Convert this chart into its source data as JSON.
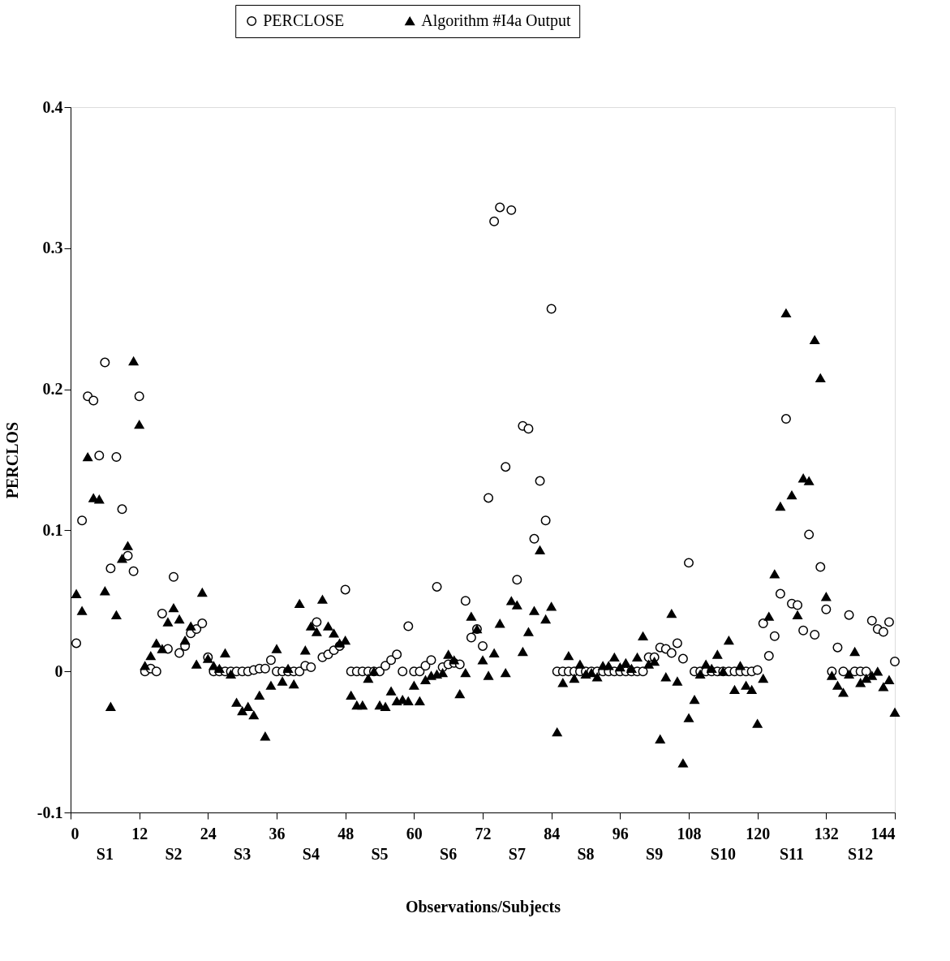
{
  "chart_data": {
    "type": "scatter",
    "xlabel": "Observations/Subjects",
    "ylabel": "PERCLOS",
    "legend": "top",
    "x": [
      1,
      2,
      3,
      4,
      5,
      6,
      7,
      8,
      9,
      10,
      11,
      12,
      13,
      14,
      15,
      16,
      17,
      18,
      19,
      20,
      21,
      22,
      23,
      24,
      25,
      26,
      27,
      28,
      29,
      30,
      31,
      32,
      33,
      34,
      35,
      36,
      37,
      38,
      39,
      40,
      41,
      42,
      43,
      44,
      45,
      46,
      47,
      48,
      49,
      50,
      51,
      52,
      53,
      54,
      55,
      56,
      57,
      58,
      59,
      60,
      61,
      62,
      63,
      64,
      65,
      66,
      67,
      68,
      69,
      70,
      71,
      72,
      73,
      74,
      75,
      76,
      77,
      78,
      79,
      80,
      81,
      82,
      83,
      84,
      85,
      86,
      87,
      88,
      89,
      90,
      91,
      92,
      93,
      94,
      95,
      96,
      97,
      98,
      99,
      100,
      101,
      102,
      103,
      104,
      105,
      106,
      107,
      108,
      109,
      110,
      111,
      112,
      113,
      114,
      115,
      116,
      117,
      118,
      119,
      120,
      121,
      122,
      123,
      124,
      125,
      126,
      127,
      128,
      129,
      130,
      131,
      132,
      133,
      134,
      135,
      136,
      137,
      138,
      139,
      140,
      141,
      142,
      143,
      144
    ],
    "series": [
      {
        "name": "PERCLOSE",
        "color": "#000000",
        "marker": "circle",
        "values": [
          0.02,
          0.107,
          0.195,
          0.192,
          0.153,
          0.219,
          0.073,
          0.152,
          0.115,
          0.082,
          0.071,
          0.195,
          0.0,
          0.002,
          0.0,
          0.041,
          0.016,
          0.067,
          0.013,
          0.018,
          0.027,
          0.03,
          0.034,
          0.01,
          0.0,
          0.0,
          0.0,
          0.0,
          0.0,
          0.0,
          0.0,
          0.001,
          0.002,
          0.002,
          0.008,
          0.0,
          0.0,
          0.0,
          0.0,
          0.0,
          0.004,
          0.003,
          0.035,
          0.01,
          0.012,
          0.015,
          0.018,
          0.058,
          0.0,
          0.0,
          0.0,
          0.0,
          0.0,
          0.0,
          0.004,
          0.008,
          0.012,
          0.0,
          0.032,
          0.0,
          0.0,
          0.004,
          0.008,
          0.06,
          0.003,
          0.005,
          0.006,
          0.005,
          0.05,
          0.024,
          0.03,
          0.018,
          0.123,
          0.319,
          0.329,
          0.145,
          0.327,
          0.065,
          0.174,
          0.172,
          0.094,
          0.135,
          0.107,
          0.257,
          0.0,
          0.0,
          0.0,
          0.0,
          0.0,
          0.0,
          0.0,
          0.0,
          0.0,
          0.0,
          0.0,
          0.0,
          0.0,
          0.0,
          0.0,
          0.0,
          0.01,
          0.01,
          0.017,
          0.016,
          0.013,
          0.02,
          0.009,
          0.077,
          0.0,
          0.0,
          0.0,
          0.0,
          0.0,
          0.0,
          0.0,
          0.0,
          0.0,
          0.0,
          0.0,
          0.001,
          0.034,
          0.011,
          0.025,
          0.055,
          0.179,
          0.048,
          0.047,
          0.029,
          0.097,
          0.026,
          0.074,
          0.044,
          0.0,
          0.017,
          0.0,
          0.04,
          0.0,
          0.0,
          0.0,
          0.036,
          0.03,
          0.028,
          0.035,
          0.007
        ]
      },
      {
        "name": "Algorithm #I4a Output",
        "color": "#000000",
        "marker": "triangle",
        "values": [
          0.055,
          0.043,
          0.152,
          0.123,
          0.122,
          0.057,
          -0.025,
          0.04,
          0.08,
          0.089,
          0.22,
          0.175,
          0.004,
          0.011,
          0.02,
          0.016,
          0.035,
          0.045,
          0.037,
          0.022,
          0.032,
          0.005,
          0.056,
          0.009,
          0.004,
          0.002,
          0.013,
          -0.002,
          -0.022,
          -0.028,
          -0.025,
          -0.031,
          -0.017,
          -0.046,
          -0.01,
          0.016,
          -0.007,
          0.002,
          -0.009,
          0.048,
          0.015,
          0.032,
          0.028,
          0.051,
          0.032,
          0.027,
          0.02,
          0.022,
          -0.017,
          -0.024,
          -0.024,
          -0.005,
          0.0,
          -0.024,
          -0.025,
          -0.014,
          -0.021,
          -0.02,
          -0.021,
          -0.01,
          -0.021,
          -0.006,
          -0.003,
          -0.002,
          -0.001,
          0.012,
          0.008,
          -0.016,
          -0.001,
          0.039,
          0.03,
          0.008,
          -0.003,
          0.013,
          0.034,
          -0.001,
          0.05,
          0.047,
          0.014,
          0.028,
          0.043,
          0.086,
          0.037,
          0.046,
          -0.043,
          -0.008,
          0.011,
          -0.005,
          0.005,
          -0.002,
          -0.001,
          -0.004,
          0.004,
          0.004,
          0.01,
          0.003,
          0.006,
          0.002,
          0.01,
          0.025,
          0.005,
          0.007,
          -0.048,
          -0.004,
          0.041,
          -0.007,
          -0.065,
          -0.033,
          -0.02,
          -0.002,
          0.005,
          0.002,
          0.012,
          0.0,
          0.022,
          -0.013,
          0.004,
          -0.01,
          -0.013,
          -0.037,
          -0.005,
          0.039,
          0.069,
          0.117,
          0.254,
          0.125,
          0.04,
          0.137,
          0.135,
          0.235,
          0.208,
          0.053,
          -0.003,
          -0.01,
          -0.015,
          -0.002,
          0.014,
          -0.008,
          -0.005,
          -0.003,
          0.0,
          -0.011,
          -0.006,
          -0.029
        ]
      }
    ],
    "xlim": [
      0,
      144
    ],
    "xticks": [
      0,
      12,
      24,
      36,
      48,
      60,
      72,
      84,
      96,
      108,
      120,
      132,
      144
    ],
    "ylim": [
      -0.1,
      0.4
    ],
    "yticks": [
      -0.1,
      0,
      0.1,
      0.2,
      0.3,
      0.4
    ],
    "annotations": [
      "S1",
      "S2",
      "S3",
      "S4",
      "S5",
      "S6",
      "S7",
      "S8",
      "S9",
      "S10",
      "S11",
      "S12"
    ]
  }
}
